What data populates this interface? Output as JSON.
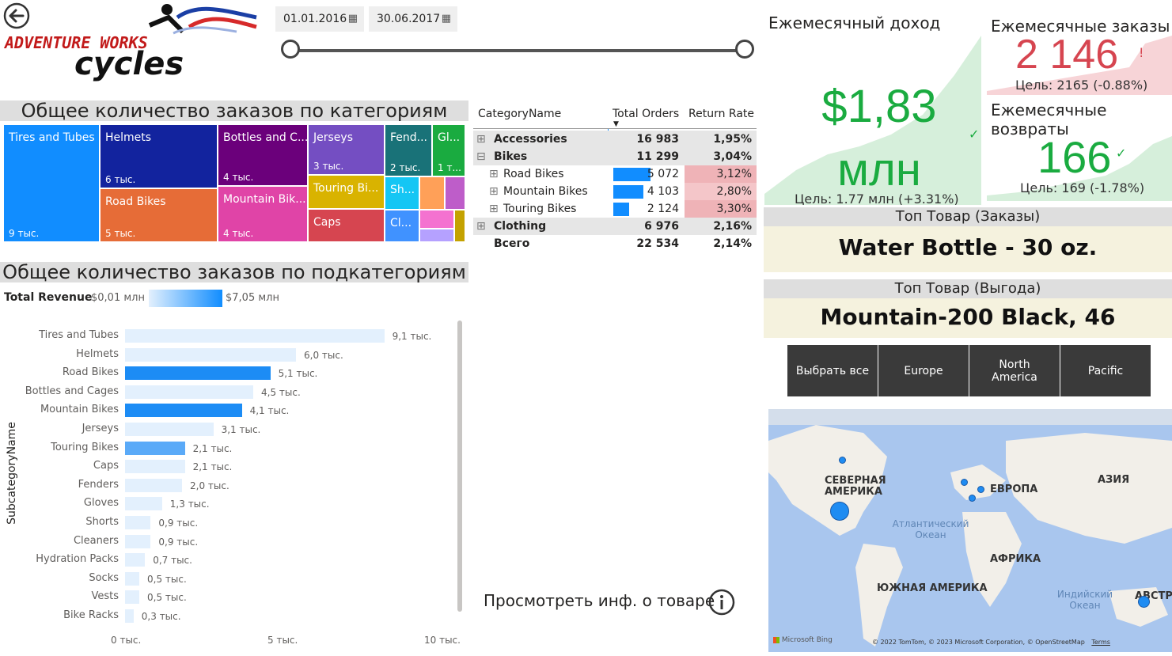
{
  "header": {
    "back_icon": "back-arrow-icon",
    "logo_text_1": "ADVENTURE WORKS",
    "logo_text_2": "cycles"
  },
  "date_range": {
    "start": "01.01.2016",
    "end": "30.06.2017"
  },
  "treemap": {
    "title": "Общее количество заказов по категориям",
    "cells": [
      {
        "name": "Tires and Tubes",
        "value": "9 тыс.",
        "color": "#118dff"
      },
      {
        "name": "Helmets",
        "value": "6 тыс.",
        "color": "#12239e"
      },
      {
        "name": "Road Bikes",
        "value": "5 тыс.",
        "color": "#e66c37"
      },
      {
        "name": "Bottles and C...",
        "value": "4 тыс.",
        "color": "#6b007b"
      },
      {
        "name": "Mountain Bik...",
        "value": "4 тыс.",
        "color": "#e044a7"
      },
      {
        "name": "Jerseys",
        "value": "3 тыс.",
        "color": "#744ec2"
      },
      {
        "name": "Touring Bi...",
        "value": "",
        "color": "#d9b300"
      },
      {
        "name": "Caps",
        "value": "",
        "color": "#d64550"
      },
      {
        "name": "Fend...",
        "value": "2 тыс.",
        "color": "#197278"
      },
      {
        "name": "Gl...",
        "value": "1 т...",
        "color": "#1aab40"
      },
      {
        "name": "Sh...",
        "value": "",
        "color": "#15c6f4"
      },
      {
        "name": "Cl...",
        "value": "",
        "color": "#4092ff"
      }
    ],
    "small_colors": [
      "#ffa058",
      "#be5dc9",
      "#f472d0",
      "#b5a1ff",
      "#c4a200"
    ]
  },
  "matrix": {
    "headers": [
      "CategoryName",
      "Total Orders",
      "Return Rate"
    ],
    "rows": [
      {
        "name": "Accessories",
        "orders": "16 983",
        "rate": "1,95%",
        "level": 0,
        "expand": "⊞"
      },
      {
        "name": "Bikes",
        "orders": "11 299",
        "rate": "3,04%",
        "level": 0,
        "expand": "⊟"
      },
      {
        "name": "Road Bikes",
        "orders": "5 072",
        "rate": "3,12%",
        "level": 1,
        "expand": "⊞",
        "bar": 0.59
      },
      {
        "name": "Mountain Bikes",
        "orders": "4 103",
        "rate": "2,80%",
        "level": 1,
        "expand": "⊞",
        "bar": 0.48
      },
      {
        "name": "Touring Bikes",
        "orders": "2 124",
        "rate": "3,30%",
        "level": 1,
        "expand": "⊞",
        "bar": 0.25
      },
      {
        "name": "Clothing",
        "orders": "6 976",
        "rate": "2,16%",
        "level": 0,
        "expand": "⊞"
      },
      {
        "name": "Всего",
        "orders": "22 534",
        "rate": "2,14%",
        "level": 0,
        "expand": ""
      }
    ]
  },
  "subcategory_chart": {
    "title": "Общее количество заказов по подкатегориям",
    "legend_label": "Total Revenue",
    "legend_min": "$0,01 млн",
    "legend_max": "$7,05 млн",
    "ylabel": "SubcategoryName"
  },
  "chart_data": {
    "type": "bar",
    "orientation": "horizontal",
    "categories": [
      "Tires and Tubes",
      "Helmets",
      "Road Bikes",
      "Bottles and Cages",
      "Mountain Bikes",
      "Jerseys",
      "Touring Bikes",
      "Caps",
      "Fenders",
      "Gloves",
      "Shorts",
      "Cleaners",
      "Hydration Packs",
      "Socks",
      "Vests",
      "Bike Racks"
    ],
    "values": [
      9.1,
      6.0,
      5.1,
      4.5,
      4.1,
      3.1,
      2.1,
      2.1,
      2.0,
      1.3,
      0.9,
      0.9,
      0.7,
      0.5,
      0.5,
      0.3
    ],
    "value_labels": [
      "9,1 тыс.",
      "6,0 тыс.",
      "5,1 тыс.",
      "4,5 тыс.",
      "4,1 тыс.",
      "3,1 тыс.",
      "2,1 тыс.",
      "2,1 тыс.",
      "2,0 тыс.",
      "1,3 тыс.",
      "0,9 тыс.",
      "0,9 тыс.",
      "0,7 тыс.",
      "0,5 тыс.",
      "0,5 тыс.",
      "0,3 тыс."
    ],
    "bar_colors": [
      "#e3f0fd",
      "#e3f0fd",
      "#1c8cf5",
      "#e3f0fd",
      "#1c8cf5",
      "#e3f0fd",
      "#5aaaf8",
      "#e3f0fd",
      "#e3f0fd",
      "#e3f0fd",
      "#e3f0fd",
      "#e3f0fd",
      "#e3f0fd",
      "#e3f0fd",
      "#e3f0fd",
      "#e3f0fd"
    ],
    "x_ticks": [
      "0 тыс.",
      "5 тыс.",
      "10 тыс."
    ],
    "xlim": [
      0,
      10
    ],
    "ylabel": "SubcategoryName"
  },
  "product_info": {
    "label": "Просмотреть инф. о товаре",
    "icon": "info-icon"
  },
  "kpi": {
    "revenue": {
      "title": "Ежемесячный доход",
      "value": "$1,83 млн",
      "goal": "Цель: 1.77 млн (+3.31%)",
      "status": "check-icon",
      "color": "#1aab40"
    },
    "orders": {
      "title": "Ежемесячные заказы",
      "value": "2 146",
      "goal": "Цель: 2165 (-0.88%)",
      "status": "warning-icon",
      "color": "#d64550"
    },
    "returns": {
      "title": "Ежемесячные возвраты",
      "value": "166",
      "goal": "Цель: 169 (-1.78%)",
      "status": "check-icon",
      "color": "#1aab40"
    }
  },
  "top_products": {
    "orders_title": "Топ Товар (Заказы)",
    "orders_value": "Water Bottle - 30 oz.",
    "profit_title": "Топ Товар (Выгода)",
    "profit_value": "Mountain-200 Black, 46"
  },
  "regions": [
    "Выбрать все",
    "Europe",
    "North America",
    "Pacific"
  ],
  "map": {
    "labels": {
      "na": "СЕВЕРНАЯ АМЕРИКА",
      "europe": "ЕВРОПА",
      "asia": "АЗИЯ",
      "africa": "АФРИКА",
      "sa": "ЮЖНАЯ АМЕРИКА",
      "aus": "АВСТР"
    },
    "oceans": {
      "atlantic": "Атлантический Океан",
      "indian": "Индийский Океан"
    },
    "bing": "Microsoft Bing",
    "copyright": "© 2022 TomTom, © 2023 Microsoft Corporation, © OpenStreetMap",
    "terms": "Terms"
  }
}
